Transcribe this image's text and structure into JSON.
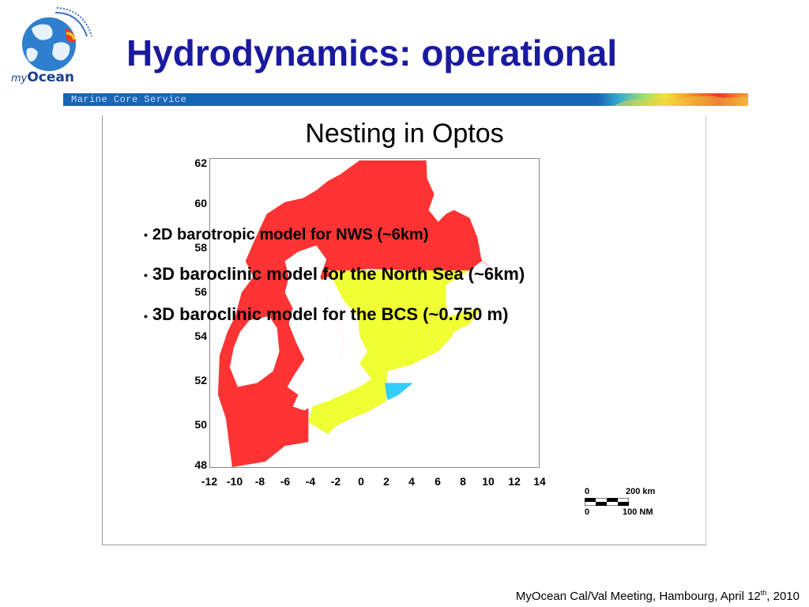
{
  "header": {
    "logo_my": "my",
    "logo_ocean": "Ocean",
    "title": "Hydrodynamics: operational",
    "band_label": "Marine Core Service"
  },
  "figure": {
    "title": "Nesting in Optos",
    "y_ticks": [
      "62",
      "60",
      "58",
      "56",
      "54",
      "52",
      "50",
      "48"
    ],
    "x_ticks": [
      "-12",
      "-10",
      "-8",
      "-6",
      "-4",
      "-2",
      "0",
      "2",
      "4",
      "6",
      "8",
      "10",
      "12",
      "14"
    ],
    "colors": {
      "nws_model": "#ff3333",
      "north_sea_model": "#f0ff33",
      "bcs_model": "#33ccff",
      "land": "#ffffff"
    },
    "scale_bar": {
      "km_start": "0",
      "km_end": "200 km",
      "nm_start": "0",
      "nm_end": "100 NM"
    }
  },
  "bullets": [
    "2D barotropic model for NWS (~6km)",
    "3D baroclinic model for the North Sea (~6km)",
    "3D baroclinic model for the BCS (~0.750 m)"
  ],
  "footer": {
    "text_before": "MyOcean Cal/Val Meeting, Hambourg, April 12",
    "superscript": "th",
    "text_after": ", 2010"
  }
}
